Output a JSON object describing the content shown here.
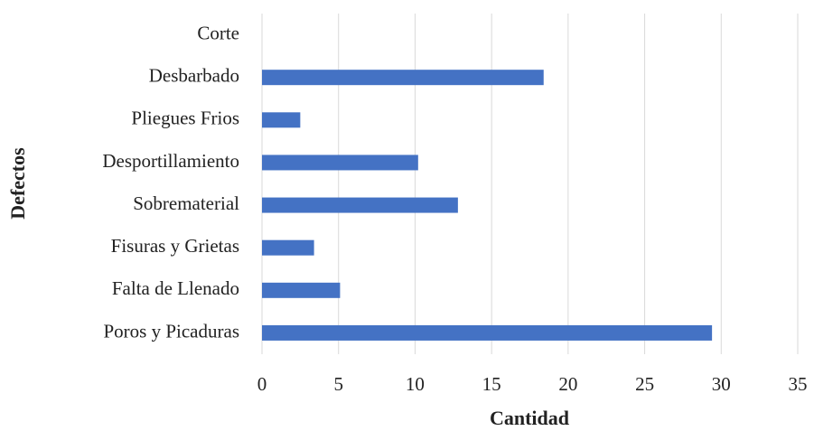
{
  "chart_data": {
    "type": "barh",
    "xlabel": "Cantidad",
    "ylabel": "Defectos",
    "categories": [
      "Corte",
      "Desbarbado",
      "Pliegues Frios",
      "Desportillamiento",
      "Sobrematerial",
      "Fisuras y Grietas",
      "Falta de Llenado",
      "Poros y Picaduras"
    ],
    "values": [
      0,
      18.4,
      2.5,
      10.2,
      12.8,
      3.4,
      5.1,
      29.4
    ],
    "color": "#4472c4",
    "xlim": [
      0,
      35
    ],
    "xticks": [
      0,
      5,
      10,
      15,
      20,
      25,
      30,
      35
    ],
    "grid": true
  }
}
